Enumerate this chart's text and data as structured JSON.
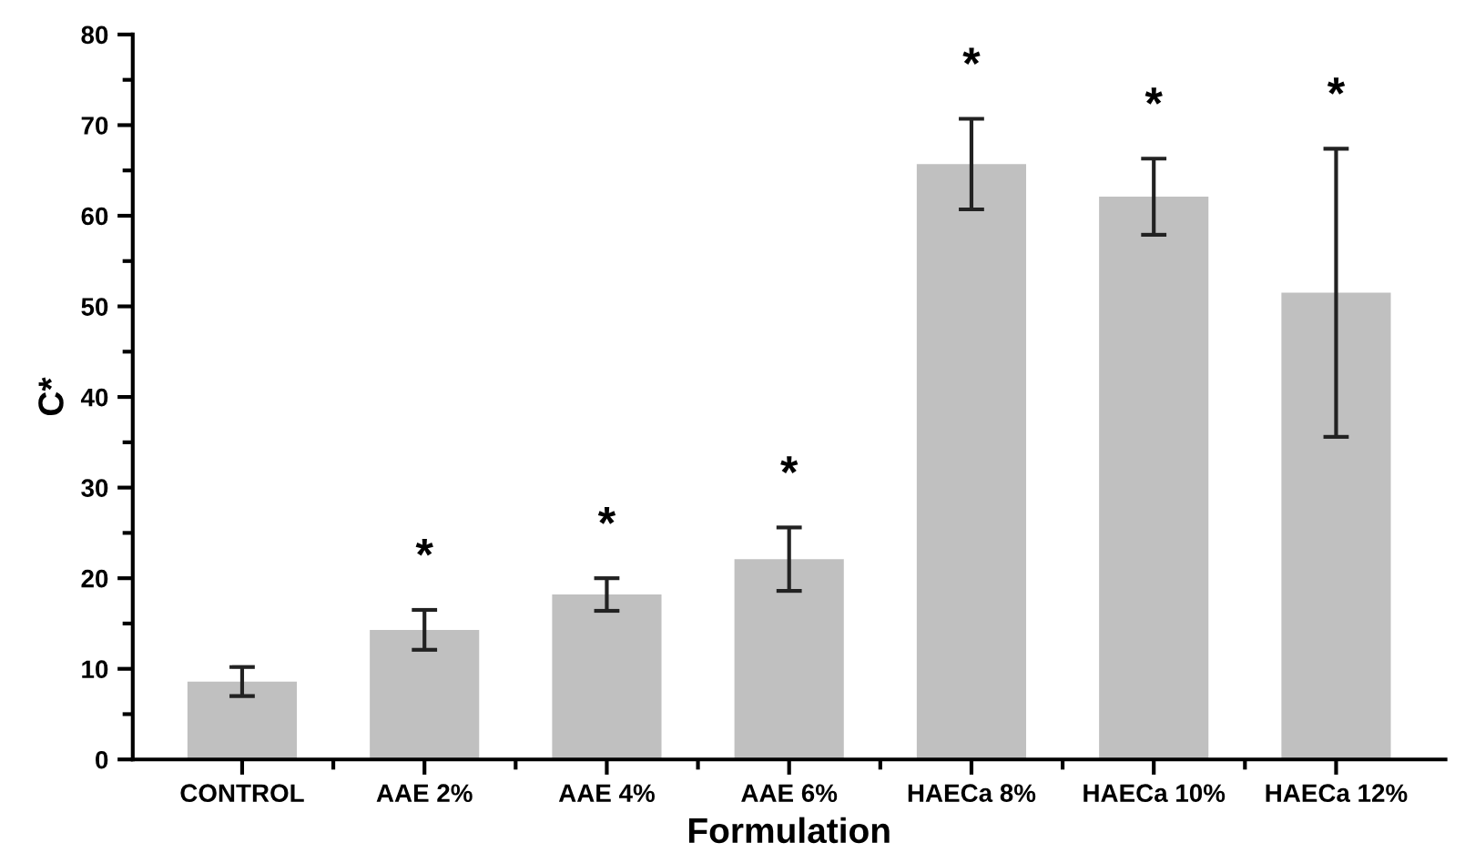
{
  "chart_data": {
    "type": "bar",
    "categories": [
      "CONTROL",
      "AAE 2%",
      "AAE 4%",
      "AAE 6%",
      "HAECa 8%",
      "HAECa 10%",
      "HAECa 12%"
    ],
    "values": [
      8.6,
      14.3,
      18.2,
      22.1,
      65.7,
      62.1,
      51.5
    ],
    "errors": [
      1.6,
      2.2,
      1.8,
      3.5,
      5.0,
      4.2,
      15.9
    ],
    "color": "#c0c0c0",
    "xlabel": "Formulation",
    "ylabel": "C*",
    "ylim": [
      0,
      80
    ],
    "yticks": [
      0,
      10,
      20,
      30,
      40,
      50,
      60,
      70,
      80
    ],
    "grid": false,
    "annotations": [
      "*",
      "*",
      "*",
      "*",
      "*",
      "*"
    ]
  }
}
